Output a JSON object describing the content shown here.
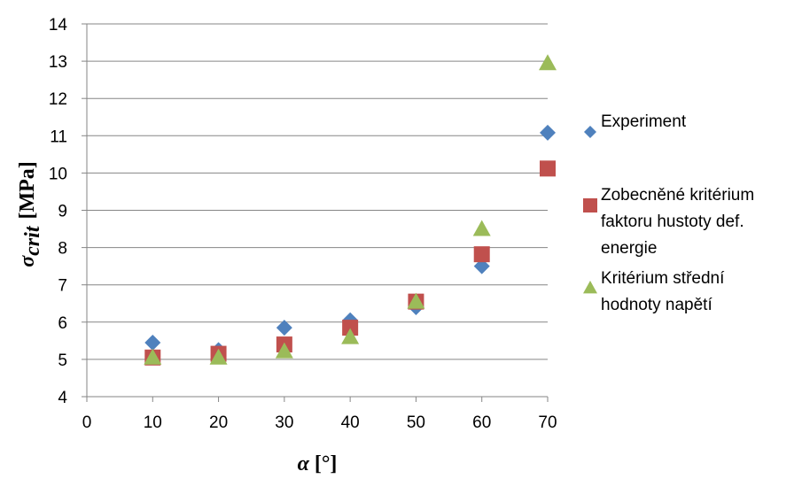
{
  "chart_data": {
    "type": "scatter",
    "title": "",
    "xlabel": {
      "symbol": "α",
      "unit": "[°]"
    },
    "ylabel": {
      "symbol": "σ",
      "subscript": "crit",
      "unit": "[MPa]"
    },
    "xlim": [
      0,
      70
    ],
    "ylim": [
      4,
      14
    ],
    "xticks": [
      0,
      10,
      20,
      30,
      40,
      50,
      60,
      70
    ],
    "yticks": [
      4,
      5,
      6,
      7,
      8,
      9,
      10,
      11,
      12,
      13,
      14
    ],
    "grid": "horizontal",
    "legend_position": "right",
    "series": [
      {
        "name": "Experiment",
        "legend_lines": [
          "Experiment"
        ],
        "marker": "diamond",
        "color": "#4F81BD",
        "x": [
          10,
          20,
          30,
          40,
          50,
          60,
          70
        ],
        "y": [
          5.45,
          5.25,
          5.85,
          6.05,
          6.4,
          7.5,
          11.08
        ]
      },
      {
        "name": "Zobecněné kritérium faktoru hustoty def. energie",
        "legend_lines": [
          "Zobecněné kritérium",
          "faktoru hustoty def.",
          "energie"
        ],
        "marker": "square",
        "color": "#C0504D",
        "x": [
          10,
          20,
          30,
          40,
          50,
          60,
          70
        ],
        "y": [
          5.05,
          5.15,
          5.4,
          5.85,
          6.55,
          7.82,
          10.12
        ]
      },
      {
        "name": "Kritérium střední hodnoty napětí",
        "legend_lines": [
          "Kritérium střední",
          "hodnoty napětí"
        ],
        "marker": "triangle",
        "color": "#9BBB59",
        "x": [
          10,
          20,
          30,
          40,
          50,
          60,
          70
        ],
        "y": [
          5.05,
          5.05,
          5.22,
          5.6,
          6.55,
          8.5,
          12.95
        ]
      }
    ]
  }
}
